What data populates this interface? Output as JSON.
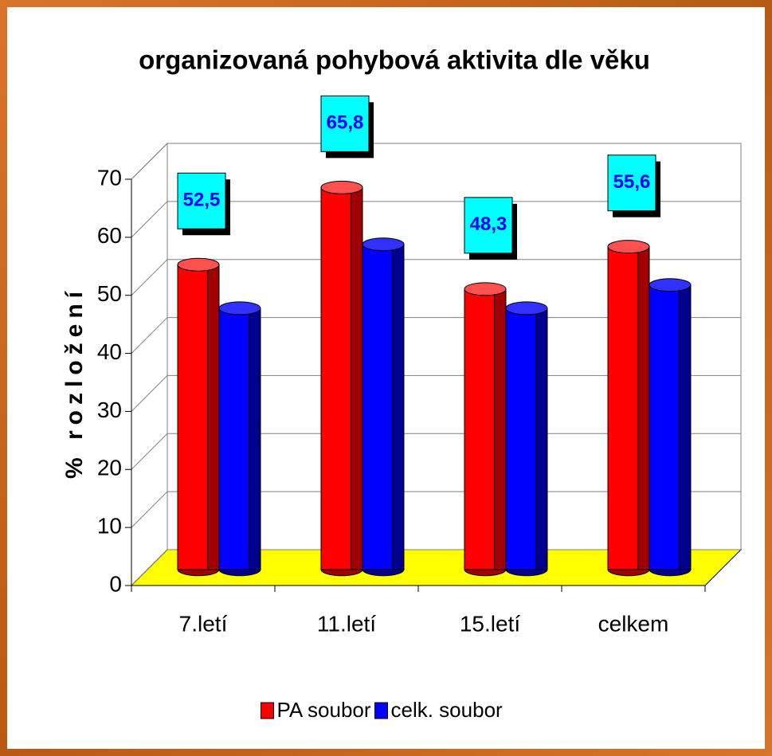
{
  "chart_data": {
    "type": "bar3d",
    "title": "organizovaná pohybová aktivita dle věku",
    "y_label": "% rozložení",
    "categories": [
      "7.letí",
      "11.letí",
      "15.letí",
      "celkem"
    ],
    "series": [
      {
        "name": "PA soubor",
        "color": "#ff0000",
        "values": [
          52.5,
          65.8,
          48.3,
          55.6
        ],
        "value_labels": [
          "52,5",
          "65,8",
          "48,3",
          "55,6"
        ]
      },
      {
        "name": "celk. soubor",
        "color": "#0000ff",
        "values": [
          45,
          56,
          45,
          49
        ]
      }
    ],
    "ylim": [
      0,
      70
    ],
    "yticks": [
      0,
      10,
      20,
      30,
      40,
      50,
      60,
      70
    ],
    "grid": true,
    "floor_color": "#ffff00",
    "legend": "bottom"
  }
}
